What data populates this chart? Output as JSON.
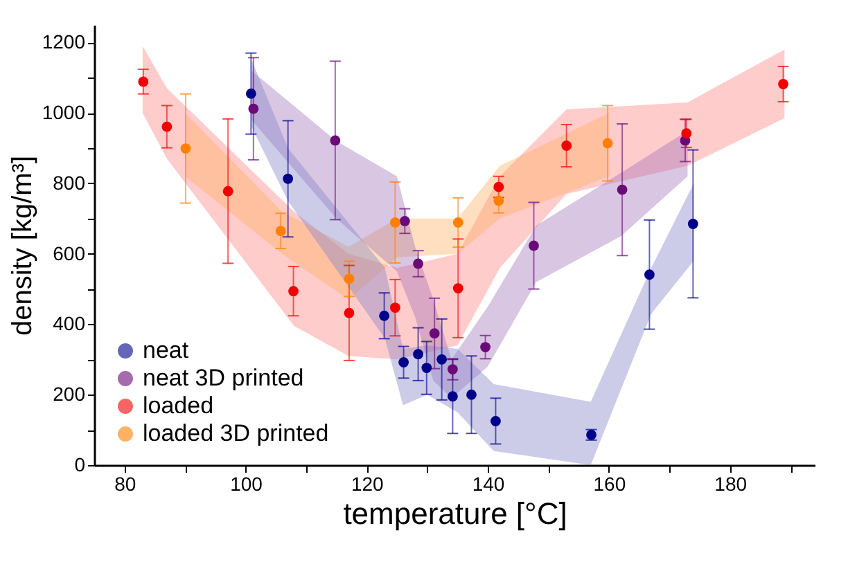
{
  "chart_data": {
    "type": "scatter",
    "xlabel": "temperature [°C]",
    "ylabel": "density [kg/m³]",
    "xlim": [
      75,
      194
    ],
    "ylim": [
      0,
      1250
    ],
    "xticks": [
      80,
      {
        "value": 90,
        "label": null
      },
      100,
      {
        "value": 110,
        "label": null
      },
      120,
      {
        "value": 130,
        "label": null
      },
      140,
      {
        "value": 150,
        "label": null
      },
      160,
      {
        "value": 170,
        "label": null
      },
      180,
      {
        "value": 190,
        "label": null
      }
    ],
    "yticks": [
      0,
      {
        "value": 100,
        "label": null
      },
      200,
      {
        "value": 300,
        "label": null
      },
      400,
      {
        "value": 500,
        "label": null
      },
      600,
      {
        "value": 700,
        "label": null
      },
      800,
      {
        "value": 900,
        "label": null
      },
      1000,
      {
        "value": 1100,
        "label": null
      },
      1200
    ],
    "grid": false,
    "legend": "bottom left",
    "marker": "circle",
    "series": [
      {
        "type": "area",
        "marker": "none",
        "color": "#ff8080",
        "x": [
          83,
          87,
          108,
          117,
          125,
          135,
          142,
          153,
          173,
          189
        ],
        "values": [
          null,
          null,
          null,
          null,
          null,
          null,
          null,
          null,
          null,
          null
        ],
        "lower": [
          1000,
          870,
          395,
          310,
          300,
          340,
          560,
          770,
          850,
          985
        ],
        "upper": [
          1190,
          1070,
          720,
          600,
          560,
          600,
          820,
          1010,
          1030,
          1180
        ]
      },
      {
        "type": "area",
        "marker": "none",
        "color": "#ffb060",
        "x": [
          90,
          106,
          117,
          125,
          135,
          142,
          160
        ],
        "values": [
          null,
          null,
          null,
          null,
          null,
          null,
          null
        ],
        "lower": [
          820,
          600,
          470,
          590,
          600,
          700,
          820
        ],
        "upper": [
          1000,
          720,
          620,
          700,
          700,
          850,
          1000
        ]
      },
      {
        "type": "area",
        "marker": "none",
        "color": "#a070b8",
        "x": [
          101,
          115,
          125,
          128,
          131,
          134,
          140,
          148,
          162,
          173
        ],
        "values": [
          null,
          null,
          null,
          null,
          null,
          null,
          null,
          null,
          null,
          null
        ],
        "lower": [
          980,
          700,
          550,
          420,
          240,
          190,
          280,
          520,
          650,
          820
        ],
        "upper": [
          1120,
          920,
          820,
          620,
          470,
          300,
          450,
          680,
          830,
          950
        ]
      },
      {
        "type": "area",
        "marker": "none",
        "color": "#8080c8",
        "x": [
          101,
          107,
          123,
          126,
          130,
          135,
          141,
          157,
          167,
          174
        ],
        "values": [
          null,
          null,
          null,
          null,
          null,
          null,
          null,
          null,
          null,
          null
        ],
        "lower": [
          960,
          750,
          360,
          170,
          200,
          150,
          40,
          0,
          430,
          580
        ],
        "upper": [
          1150,
          900,
          560,
          330,
          340,
          330,
          230,
          180,
          560,
          800
        ]
      },
      {
        "name": "neat",
        "color": "#00008b",
        "x": [
          100.9,
          107.0,
          122.9,
          126.1,
          128.5,
          129.9,
          132.4,
          134.2,
          137.3,
          141.3,
          157.1,
          166.7,
          173.9
        ],
        "values": [
          1055,
          813,
          424,
          292,
          315,
          276,
          300,
          195,
          200,
          125,
          86,
          541,
          685
        ],
        "errors": [
          115,
          165,
          65,
          45,
          75,
          75,
          115,
          105,
          110,
          65,
          15,
          155,
          210
        ]
      },
      {
        "name": "neat 3D printed",
        "color": "#6a0a78",
        "x": [
          101.3,
          114.8,
          126.3,
          128.5,
          131.2,
          134.2,
          139.6,
          147.6,
          162.2,
          172.6
        ],
        "values": [
          1012,
          922,
          693,
          572,
          374,
          272,
          335,
          623,
          782,
          922
        ],
        "errors": [
          145,
          225,
          35,
          37,
          100,
          30,
          33,
          123,
          187,
          60
        ]
      },
      {
        "name": "loaded",
        "color": "#f00000",
        "x": [
          83.1,
          87.0,
          97.1,
          107.9,
          117.1,
          124.7,
          135.1,
          141.8,
          153.0,
          172.8,
          188.8
        ],
        "values": [
          1089,
          961,
          778,
          494,
          432,
          447,
          502,
          790,
          907,
          942,
          1082
        ],
        "errors": [
          35,
          60,
          205,
          70,
          135,
          80,
          140,
          30,
          60,
          40,
          50
        ]
      },
      {
        "name": "loaded 3D printed",
        "color": "#ff8000",
        "x": [
          90.1,
          105.8,
          117.1,
          124.7,
          135.1,
          141.8,
          159.8
        ],
        "values": [
          899,
          665,
          529,
          689,
          689,
          751,
          914
        ],
        "errors": [
          155,
          50,
          50,
          115,
          70,
          35,
          107
        ]
      }
    ]
  }
}
